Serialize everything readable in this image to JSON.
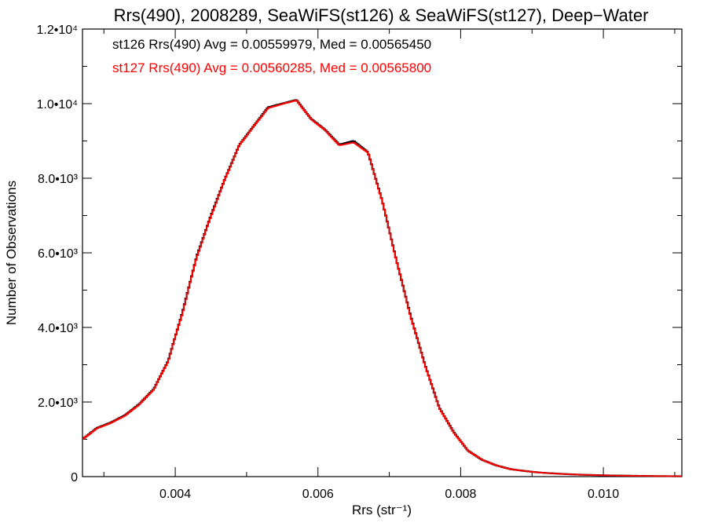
{
  "chart_data": {
    "type": "line",
    "style": "step histogram",
    "title": "Rrs(490), 2008289, SeaWiFS(st126) & SeaWiFS(st127), Deep−Water",
    "xlabel": "Rrs (str⁻¹)",
    "ylabel": "Number of Observations",
    "xlim": [
      0.0027,
      0.0111
    ],
    "ylim": [
      0,
      12000
    ],
    "xticks": [
      {
        "value": 0.004,
        "label": "0.004"
      },
      {
        "value": 0.006,
        "label": "0.006"
      },
      {
        "value": 0.008,
        "label": "0.008"
      },
      {
        "value": 0.01,
        "label": "0.010"
      }
    ],
    "yticks": [
      {
        "value": 0,
        "label": "0"
      },
      {
        "value": 2000,
        "label": "2.0•10³"
      },
      {
        "value": 4000,
        "label": "4.0•10³"
      },
      {
        "value": 6000,
        "label": "6.0•10³"
      },
      {
        "value": 8000,
        "label": "8.0•10³"
      },
      {
        "value": 10000,
        "label": "1.0•10⁴"
      },
      {
        "value": 12000,
        "label": "1.2•10⁴"
      }
    ],
    "legend_placement": "top-left",
    "grid": false,
    "x": [
      0.0027,
      0.0029,
      0.0031,
      0.0033,
      0.0035,
      0.0037,
      0.0039,
      0.0041,
      0.0043,
      0.0045,
      0.0047,
      0.0049,
      0.0051,
      0.0053,
      0.0055,
      0.0057,
      0.0059,
      0.0061,
      0.0063,
      0.0065,
      0.0067,
      0.0069,
      0.0071,
      0.0073,
      0.0075,
      0.0077,
      0.0079,
      0.0081,
      0.0083,
      0.0085,
      0.0087,
      0.0089,
      0.0091,
      0.0093,
      0.0095,
      0.0097,
      0.0099,
      0.0101,
      0.0103,
      0.0105,
      0.0107,
      0.0109,
      0.0111
    ],
    "series": [
      {
        "name": "st126",
        "color": "#000000",
        "legend": "st126 Rrs(490) Avg = 0.00559979, Med = 0.00565450",
        "values": [
          1000,
          1300,
          1450,
          1650,
          1950,
          2350,
          3100,
          4400,
          5900,
          7000,
          8000,
          8900,
          9400,
          9900,
          10000,
          10100,
          9600,
          9300,
          8900,
          9000,
          8700,
          7400,
          5800,
          4300,
          3000,
          1850,
          1200,
          700,
          450,
          300,
          200,
          150,
          110,
          85,
          65,
          50,
          40,
          30,
          25,
          20,
          15,
          12,
          10
        ]
      },
      {
        "name": "st127",
        "color": "#ff0000",
        "legend": "st127 Rrs(490) Avg = 0.00560285, Med = 0.00565800",
        "values": [
          1000,
          1290,
          1440,
          1640,
          1940,
          2340,
          3090,
          4380,
          5880,
          6980,
          7990,
          8890,
          9390,
          9880,
          9990,
          10090,
          9590,
          9290,
          8880,
          8960,
          8690,
          7390,
          5790,
          4280,
          2990,
          1840,
          1190,
          700,
          450,
          300,
          200,
          150,
          110,
          85,
          65,
          50,
          40,
          30,
          25,
          20,
          15,
          12,
          10
        ]
      }
    ]
  }
}
